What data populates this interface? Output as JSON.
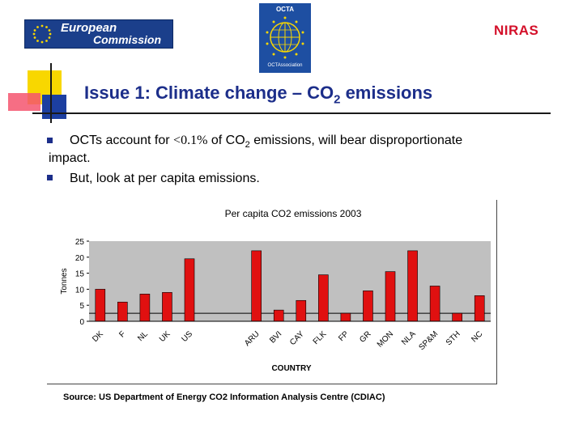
{
  "header": {
    "ec_logo_line1": "European",
    "ec_logo_line2": "Commission",
    "octa_logo_top": "OCTA",
    "octa_logo_bottom": "OCTAssociation",
    "niras_logo": "NIRAS"
  },
  "title": {
    "main": "Issue 1: Climate change – CO",
    "sub": "2",
    "tail": " emissions"
  },
  "bullets": {
    "b1_part1": "OCTs account for ",
    "b1_lt": "<0.1%",
    "b1_part2": " of CO",
    "b1_sub": "2",
    "b1_part3": " emissions, will bear disproportionate",
    "b1_cont": "impact.",
    "b2": "But, look at per capita emissions."
  },
  "source": "Source: US Department of Energy CO2 Information Analysis Centre (CDIAC)",
  "colors": {
    "bar": "#e01010",
    "plot_bg": "#c0c0c0",
    "title_blue": "#1c2e8a"
  },
  "chart_data": {
    "type": "bar",
    "title": "Per capita CO2 emissions 2003",
    "xlabel": "COUNTRY",
    "ylabel": "Tonnes",
    "ylim": [
      0,
      25
    ],
    "yticks": [
      0,
      5,
      10,
      15,
      20,
      25
    ],
    "reference_line": 2.5,
    "categories": [
      "DK",
      "F",
      "NL",
      "UK",
      "US",
      "",
      "",
      "ARU",
      "BVI",
      "CAY",
      "FLK",
      "FP",
      "GR",
      "MON",
      "NLA",
      "SP&M",
      "STH",
      "NC"
    ],
    "values": [
      10,
      6,
      8.5,
      9,
      19.5,
      null,
      null,
      22,
      3.5,
      6.5,
      14.5,
      2.5,
      9.5,
      15.5,
      22,
      11,
      2.5,
      8
    ]
  }
}
